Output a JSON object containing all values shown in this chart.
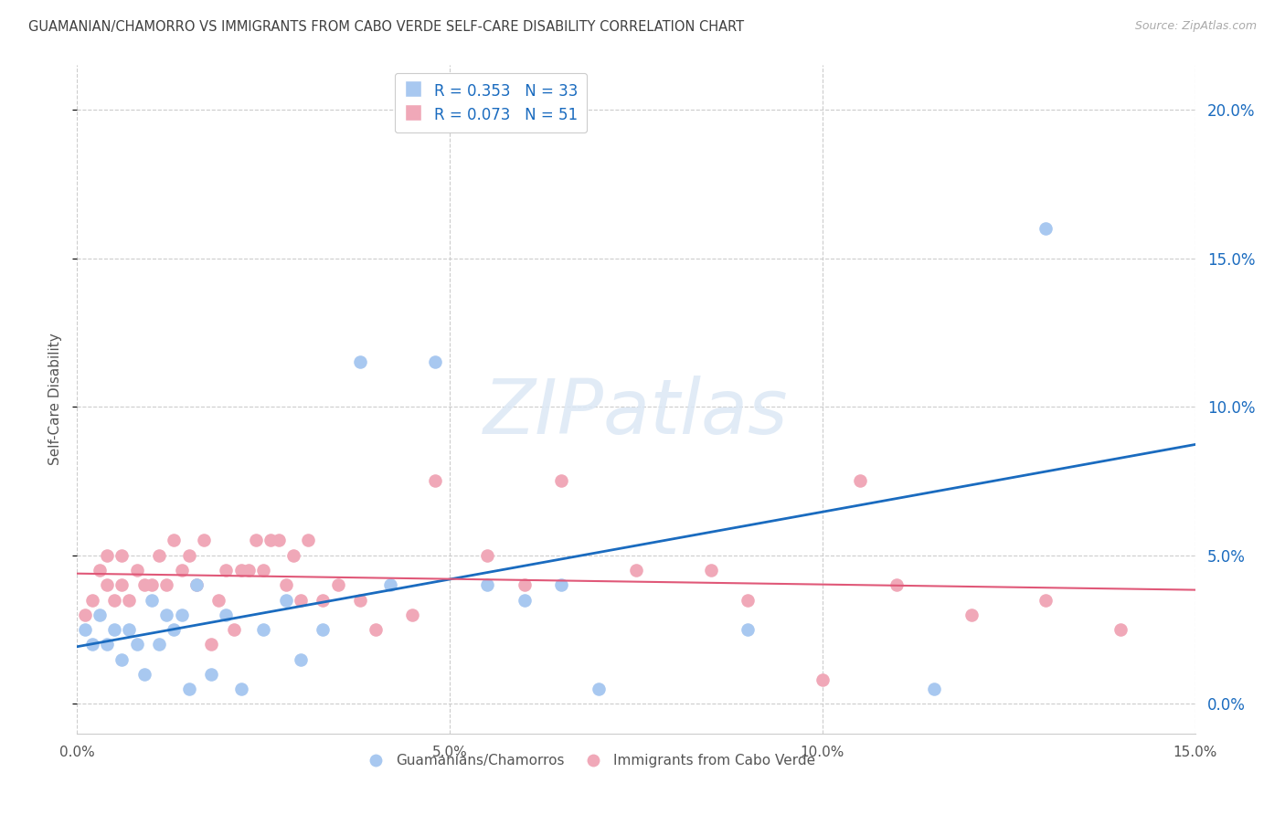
{
  "title": "GUAMANIAN/CHAMORRO VS IMMIGRANTS FROM CABO VERDE SELF-CARE DISABILITY CORRELATION CHART",
  "source": "Source: ZipAtlas.com",
  "ylabel": "Self-Care Disability",
  "xlim": [
    0.0,
    0.15
  ],
  "ylim": [
    -0.01,
    0.215
  ],
  "yticks": [
    0.0,
    0.05,
    0.1,
    0.15,
    0.2
  ],
  "xticks": [
    0.0,
    0.05,
    0.1,
    0.15
  ],
  "legend_label1": "Guamanians/Chamorros",
  "legend_label2": "Immigrants from Cabo Verde",
  "blue_color": "#a8c8f0",
  "blue_line_color": "#1a6bbf",
  "pink_color": "#f0a8b8",
  "pink_line_color": "#e05878",
  "background_color": "#ffffff",
  "grid_color": "#cccccc",
  "blue_x": [
    0.001,
    0.002,
    0.003,
    0.004,
    0.005,
    0.006,
    0.007,
    0.008,
    0.009,
    0.01,
    0.011,
    0.012,
    0.013,
    0.014,
    0.015,
    0.016,
    0.018,
    0.02,
    0.022,
    0.025,
    0.028,
    0.03,
    0.033,
    0.038,
    0.042,
    0.048,
    0.055,
    0.06,
    0.065,
    0.07,
    0.09,
    0.115,
    0.13
  ],
  "blue_y": [
    0.025,
    0.02,
    0.03,
    0.02,
    0.025,
    0.015,
    0.025,
    0.02,
    0.01,
    0.035,
    0.02,
    0.03,
    0.025,
    0.03,
    0.005,
    0.04,
    0.01,
    0.03,
    0.005,
    0.025,
    0.035,
    0.015,
    0.025,
    0.115,
    0.04,
    0.115,
    0.04,
    0.035,
    0.04,
    0.005,
    0.025,
    0.005,
    0.16
  ],
  "pink_x": [
    0.001,
    0.002,
    0.003,
    0.004,
    0.004,
    0.005,
    0.006,
    0.006,
    0.007,
    0.008,
    0.009,
    0.01,
    0.011,
    0.012,
    0.013,
    0.014,
    0.015,
    0.016,
    0.017,
    0.018,
    0.019,
    0.02,
    0.021,
    0.022,
    0.023,
    0.024,
    0.025,
    0.026,
    0.027,
    0.028,
    0.029,
    0.03,
    0.031,
    0.033,
    0.035,
    0.038,
    0.04,
    0.045,
    0.048,
    0.055,
    0.06,
    0.065,
    0.075,
    0.085,
    0.09,
    0.1,
    0.105,
    0.11,
    0.12,
    0.13,
    0.14
  ],
  "pink_y": [
    0.03,
    0.035,
    0.045,
    0.04,
    0.05,
    0.035,
    0.04,
    0.05,
    0.035,
    0.045,
    0.04,
    0.04,
    0.05,
    0.04,
    0.055,
    0.045,
    0.05,
    0.04,
    0.055,
    0.02,
    0.035,
    0.045,
    0.025,
    0.045,
    0.045,
    0.055,
    0.045,
    0.055,
    0.055,
    0.04,
    0.05,
    0.035,
    0.055,
    0.035,
    0.04,
    0.035,
    0.025,
    0.03,
    0.075,
    0.05,
    0.04,
    0.075,
    0.045,
    0.045,
    0.035,
    0.008,
    0.075,
    0.04,
    0.03,
    0.035,
    0.025
  ]
}
